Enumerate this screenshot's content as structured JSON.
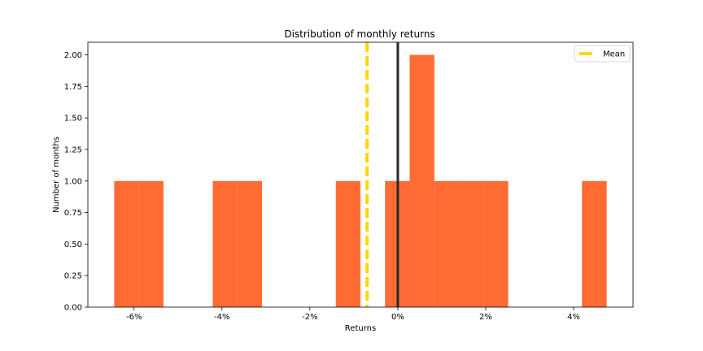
{
  "chart_data": {
    "type": "bar",
    "title": "Distribution of monthly returns",
    "xlabel": "Returns",
    "ylabel": "Number of months",
    "xlim": [
      -7.05,
      5.35
    ],
    "ylim": [
      0,
      2.1
    ],
    "x_ticks": [
      -6,
      -4,
      -2,
      0,
      2,
      4
    ],
    "x_tick_labels": [
      "-6%",
      "-4%",
      "-2%",
      "0%",
      "2%",
      "4%"
    ],
    "y_ticks": [
      0,
      0.25,
      0.5,
      0.75,
      1.0,
      1.25,
      1.5,
      1.75,
      2.0
    ],
    "y_tick_labels": [
      "0.00",
      "0.25",
      "0.50",
      "0.75",
      "1.00",
      "1.25",
      "1.50",
      "1.75",
      "2.00"
    ],
    "bins": [
      {
        "x0": -6.45,
        "x1": -5.89,
        "count": 1
      },
      {
        "x0": -5.89,
        "x1": -5.33,
        "count": 1
      },
      {
        "x0": -4.21,
        "x1": -3.65,
        "count": 1
      },
      {
        "x0": -3.65,
        "x1": -3.09,
        "count": 1
      },
      {
        "x0": -1.41,
        "x1": -0.85,
        "count": 1
      },
      {
        "x0": -0.29,
        "x1": 0.27,
        "count": 1
      },
      {
        "x0": 0.27,
        "x1": 0.83,
        "count": 2
      },
      {
        "x0": 0.83,
        "x1": 1.39,
        "count": 1
      },
      {
        "x0": 1.39,
        "x1": 1.95,
        "count": 1
      },
      {
        "x0": 1.95,
        "x1": 2.51,
        "count": 1
      },
      {
        "x0": 4.19,
        "x1": 4.75,
        "count": 1
      }
    ],
    "mean": -0.7,
    "zero_line": 0,
    "legend": {
      "placement": "top-right",
      "entries": [
        "Mean"
      ]
    },
    "grid": false
  },
  "colors": {
    "bar": "#ff6b33",
    "mean_line": "#ffd700",
    "zero_line": "#2b2b2b",
    "axes": "#000000"
  }
}
